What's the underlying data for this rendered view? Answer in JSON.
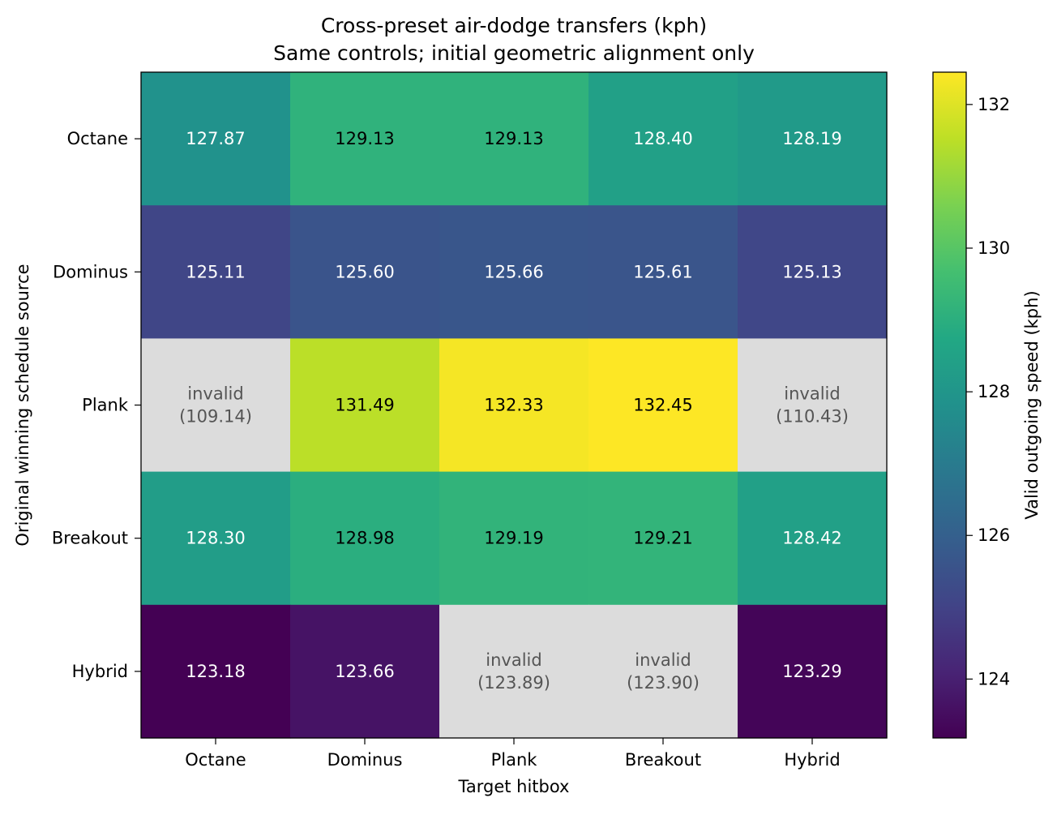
{
  "chart_data": {
    "type": "heatmap",
    "title": "Cross-preset air-dodge transfers (kph)",
    "subtitle": "Same controls; initial geometric alignment only",
    "xlabel": "Target hitbox",
    "ylabel": "Original winning schedule source",
    "x_categories": [
      "Octane",
      "Dominus",
      "Plank",
      "Breakout",
      "Hybrid"
    ],
    "y_categories": [
      "Octane",
      "Dominus",
      "Plank",
      "Breakout",
      "Hybrid"
    ],
    "values": [
      [
        127.87,
        129.13,
        129.13,
        128.4,
        128.19
      ],
      [
        125.11,
        125.6,
        125.66,
        125.61,
        125.13
      ],
      [
        109.14,
        131.49,
        132.33,
        132.45,
        110.43
      ],
      [
        128.3,
        128.98,
        129.19,
        129.21,
        128.42
      ],
      [
        123.18,
        123.66,
        123.89,
        123.9,
        123.29
      ]
    ],
    "labels": [
      [
        "127.87",
        "129.13",
        "129.13",
        "128.40",
        "128.19"
      ],
      [
        "125.11",
        "125.60",
        "125.66",
        "125.61",
        "125.13"
      ],
      [
        [
          "invalid",
          "(109.14)"
        ],
        "131.49",
        "132.33",
        "132.45",
        [
          "invalid",
          "(110.43)"
        ]
      ],
      [
        "128.30",
        "128.98",
        "129.19",
        "129.21",
        "128.42"
      ],
      [
        "123.18",
        "123.66",
        [
          "invalid",
          "(123.89)"
        ],
        [
          "invalid",
          "(123.90)"
        ],
        "123.29"
      ]
    ],
    "valid": [
      [
        true,
        true,
        true,
        true,
        true
      ],
      [
        true,
        true,
        true,
        true,
        true
      ],
      [
        false,
        true,
        true,
        true,
        false
      ],
      [
        true,
        true,
        true,
        true,
        true
      ],
      [
        true,
        true,
        false,
        false,
        true
      ]
    ],
    "colorbar": {
      "label": "Valid outgoing speed (kph)",
      "cmap": "viridis",
      "vmin": 123.18,
      "vmax": 132.45,
      "ticks": [
        124,
        126,
        128,
        130,
        132
      ]
    },
    "invalid_color": "#dcdcdc",
    "invalid_text_color": "#555555",
    "grid": false
  }
}
